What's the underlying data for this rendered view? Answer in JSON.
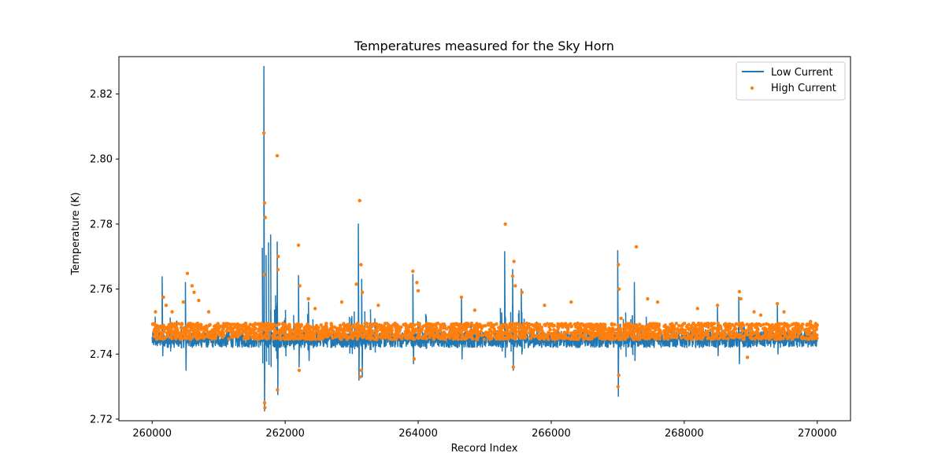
{
  "chart_data": {
    "type": "line",
    "title": "Temperatures measured for the Sky Horn",
    "xlabel": "Record Index",
    "ylabel": "Temperature (K)",
    "xlim": [
      259500,
      270500
    ],
    "ylim": [
      2.7195,
      2.8315
    ],
    "x_ticks": [
      260000,
      262000,
      264000,
      266000,
      268000,
      270000
    ],
    "x_tick_labels": [
      "260000",
      "262000",
      "264000",
      "266000",
      "268000",
      "270000"
    ],
    "y_ticks": [
      2.72,
      2.74,
      2.76,
      2.78,
      2.8,
      2.82
    ],
    "y_tick_labels": [
      "2.72",
      "2.74",
      "2.76",
      "2.78",
      "2.80",
      "2.82"
    ],
    "legend_position": "top-right",
    "grid": false,
    "series": [
      {
        "name": "Low Current",
        "kind": "line",
        "color": "#1f77b4",
        "baseline": 2.7445,
        "noise_band": 0.0025,
        "spikes": [
          {
            "x": 260150,
            "high": 2.7638,
            "low": 2.7395
          },
          {
            "x": 260500,
            "high": 2.762,
            "low": 2.735
          },
          {
            "x": 261680,
            "high": 2.8285,
            "low": 2.7225
          },
          {
            "x": 261880,
            "high": 2.7745,
            "low": 2.7275
          },
          {
            "x": 262200,
            "high": 2.7642,
            "low": 2.736
          },
          {
            "x": 262350,
            "high": 2.756,
            "low": 2.738
          },
          {
            "x": 263100,
            "high": 2.78,
            "low": 2.732
          },
          {
            "x": 263150,
            "high": 2.763,
            "low": 2.733
          },
          {
            "x": 263920,
            "high": 2.7645,
            "low": 2.737
          },
          {
            "x": 264650,
            "high": 2.7575,
            "low": 2.7385
          },
          {
            "x": 265300,
            "high": 2.7715,
            "low": 2.739
          },
          {
            "x": 265420,
            "high": 2.766,
            "low": 2.735
          },
          {
            "x": 265550,
            "high": 2.76,
            "low": 2.74
          },
          {
            "x": 267000,
            "high": 2.7718,
            "low": 2.727
          },
          {
            "x": 267250,
            "high": 2.762,
            "low": 2.738
          },
          {
            "x": 268500,
            "high": 2.755,
            "low": 2.7395
          },
          {
            "x": 268820,
            "high": 2.7575,
            "low": 2.737
          },
          {
            "x": 269400,
            "high": 2.7555,
            "low": 2.74
          }
        ]
      },
      {
        "name": "High Current",
        "kind": "scatter",
        "color": "#ff7f0e",
        "baseline": 2.747,
        "noise_band": 0.0025,
        "points": [
          [
            260050,
            2.753
          ],
          [
            260170,
            2.7575
          ],
          [
            260210,
            2.755
          ],
          [
            260300,
            2.753
          ],
          [
            260470,
            2.756
          ],
          [
            260530,
            2.7648
          ],
          [
            260600,
            2.761
          ],
          [
            260630,
            2.759
          ],
          [
            260700,
            2.7565
          ],
          [
            260850,
            2.753
          ],
          [
            261680,
            2.808
          ],
          [
            261690,
            2.7865
          ],
          [
            261700,
            2.782
          ],
          [
            261685,
            2.7645
          ],
          [
            261695,
            2.7235
          ],
          [
            261690,
            2.725
          ],
          [
            261880,
            2.801
          ],
          [
            261890,
            2.766
          ],
          [
            261895,
            2.77
          ],
          [
            261885,
            2.729
          ],
          [
            262200,
            2.7735
          ],
          [
            262220,
            2.761
          ],
          [
            262210,
            2.735
          ],
          [
            262350,
            2.757
          ],
          [
            262450,
            2.754
          ],
          [
            262850,
            2.756
          ],
          [
            263070,
            2.7615
          ],
          [
            263120,
            2.7872
          ],
          [
            263140,
            2.7675
          ],
          [
            263160,
            2.759
          ],
          [
            263130,
            2.733
          ],
          [
            263145,
            2.735
          ],
          [
            263400,
            2.755
          ],
          [
            263920,
            2.7655
          ],
          [
            263980,
            2.762
          ],
          [
            264000,
            2.7595
          ],
          [
            263940,
            2.7385
          ],
          [
            264650,
            2.7575
          ],
          [
            264850,
            2.7535
          ],
          [
            265310,
            2.78
          ],
          [
            265420,
            2.764
          ],
          [
            265440,
            2.7685
          ],
          [
            265460,
            2.761
          ],
          [
            265560,
            2.759
          ],
          [
            265430,
            2.736
          ],
          [
            265900,
            2.755
          ],
          [
            266300,
            2.756
          ],
          [
            267010,
            2.7675
          ],
          [
            267020,
            2.76
          ],
          [
            267050,
            2.751
          ],
          [
            267005,
            2.73
          ],
          [
            267015,
            2.7335
          ],
          [
            267280,
            2.773
          ],
          [
            267450,
            2.757
          ],
          [
            267600,
            2.756
          ],
          [
            268200,
            2.754
          ],
          [
            268500,
            2.755
          ],
          [
            268830,
            2.7592
          ],
          [
            268850,
            2.757
          ],
          [
            268950,
            2.739
          ],
          [
            269050,
            2.753
          ],
          [
            269150,
            2.752
          ],
          [
            269400,
            2.7555
          ],
          [
            269500,
            2.753
          ],
          [
            269900,
            2.75
          ]
        ]
      }
    ]
  }
}
